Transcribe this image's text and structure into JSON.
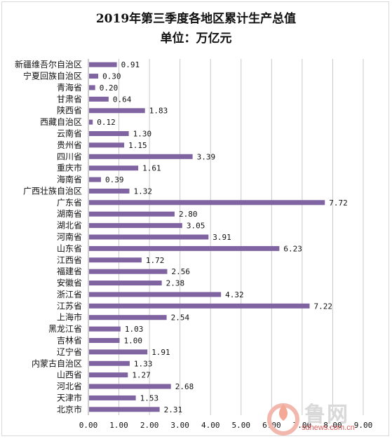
{
  "chart_data": {
    "type": "bar",
    "orientation": "horizontal",
    "title": "2019年第三季度各地区累计生产总值",
    "subtitle": "单位：万亿元",
    "categories": [
      "新疆维吾尔自治区",
      "宁夏回族自治区",
      "青海省",
      "甘肃省",
      "陕西省",
      "西藏自治区",
      "云南省",
      "贵州省",
      "四川省",
      "重庆市",
      "海南省",
      "广西壮族自治区",
      "广东省",
      "湖南省",
      "湖北省",
      "河南省",
      "山东省",
      "江西省",
      "福建省",
      "安徽省",
      "浙江省",
      "江苏省",
      "上海市",
      "黑龙江省",
      "吉林省",
      "辽宁省",
      "内蒙古自治区",
      "山西省",
      "河北省",
      "天津市",
      "北京市"
    ],
    "values": [
      0.91,
      0.3,
      0.2,
      0.64,
      1.83,
      0.12,
      1.3,
      1.15,
      3.39,
      1.61,
      0.39,
      1.32,
      7.72,
      2.8,
      3.05,
      3.91,
      6.23,
      1.72,
      2.56,
      2.38,
      4.32,
      7.22,
      2.54,
      1.03,
      1.0,
      1.91,
      1.33,
      1.27,
      2.68,
      1.53,
      2.31
    ],
    "value_labels": [
      "0.91",
      "0.30",
      "0.20",
      "0.64",
      "1.83",
      "0.12",
      "1.30",
      "1.15",
      "3.39",
      "1.61",
      "0.39",
      "1.32",
      "7.72",
      "2.80",
      "3.05",
      "3.91",
      "6.23",
      "1.72",
      "2.56",
      "2.38",
      "4.32",
      "7.22",
      "2.54",
      "1.03",
      "1.00",
      "1.91",
      "1.33",
      "1.27",
      "2.68",
      "1.53",
      "2.31"
    ],
    "xlim": [
      0,
      9
    ],
    "xticks": [
      "0.00",
      "1.00",
      "2.00",
      "3.00",
      "4.00",
      "5.00",
      "6.00",
      "7.00",
      "8.00",
      "9.00"
    ],
    "grid": true,
    "bar_color": "#8064a2",
    "grid_color": "#c8c8c8"
  },
  "watermark": {
    "text": "鲁网",
    "url": "sdnews.com.cn",
    "accent_color": "#e8452e"
  }
}
